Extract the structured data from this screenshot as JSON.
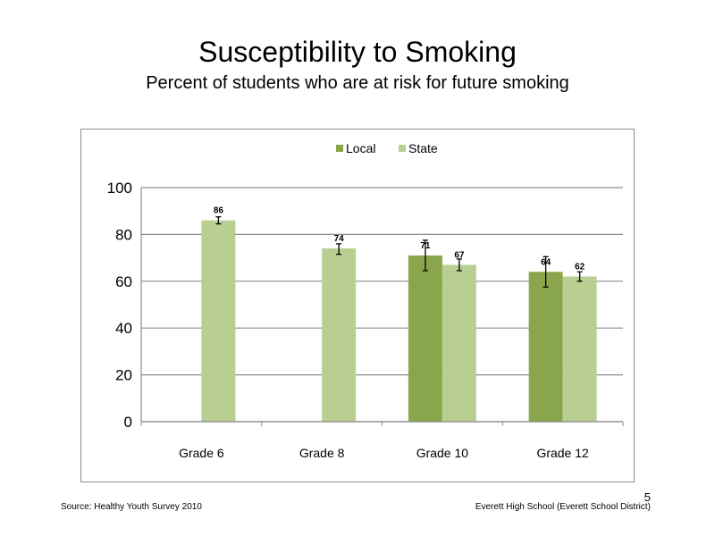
{
  "slide": {
    "title": "Susceptibility to Smoking",
    "subtitle": "Percent of students who are at risk for future smoking",
    "source": "Source: Healthy Youth Survey 2010",
    "school": "Everett High School (Everett School District)",
    "page_number": "5"
  },
  "chart_data": {
    "type": "bar",
    "title": "",
    "xlabel": "",
    "ylabel": "",
    "categories": [
      "Grade 6",
      "Grade 8",
      "Grade 10",
      "Grade 12"
    ],
    "series": [
      {
        "name": "Local",
        "color": "#8aa64d",
        "values": [
          null,
          null,
          71,
          64
        ],
        "labels": [
          "",
          "",
          "71",
          "64"
        ],
        "error_low": [
          null,
          null,
          64.5,
          57.5
        ],
        "error_high": [
          null,
          null,
          77.5,
          70.5
        ]
      },
      {
        "name": "State",
        "color": "#b9cf92",
        "values": [
          86,
          74,
          67,
          62
        ],
        "labels": [
          "86",
          "74",
          "67",
          "62"
        ],
        "error_low": [
          84.5,
          71.5,
          64.5,
          60
        ],
        "error_high": [
          87.5,
          76,
          69.5,
          64
        ]
      }
    ],
    "ylim": [
      0,
      100
    ],
    "yticks": [
      "0",
      "20",
      "40",
      "60",
      "80",
      "100"
    ],
    "grid": true,
    "legend_position": "top"
  }
}
